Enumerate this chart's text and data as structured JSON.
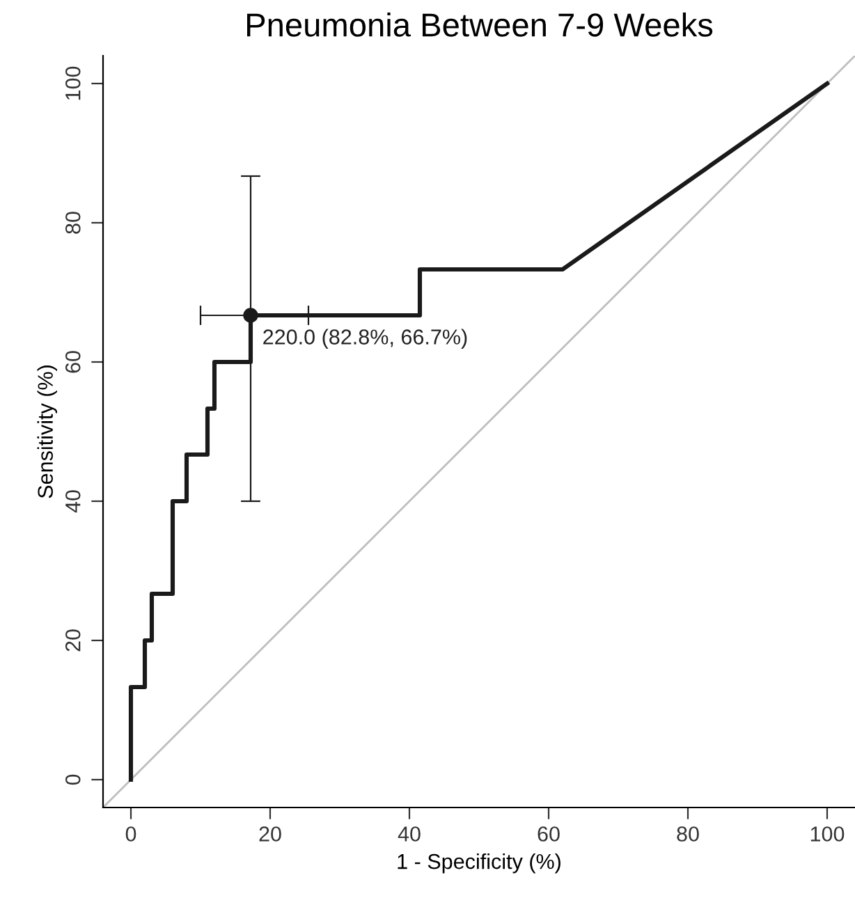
{
  "chart_data": {
    "type": "line",
    "title": "Pneumonia Between 7-9 Weeks",
    "xlabel": "1 - Specificity (%)",
    "ylabel": "Sensitivity (%)",
    "xlim": [
      -4,
      104
    ],
    "ylim": [
      -4,
      104
    ],
    "xticks": [
      0,
      20,
      40,
      60,
      80,
      100
    ],
    "yticks": [
      0,
      20,
      40,
      60,
      80,
      100
    ],
    "grid": false,
    "legend": false,
    "series": [
      {
        "type": "line",
        "color": "#bebebe",
        "x": [
          -4,
          104
        ],
        "values": [
          -4,
          104
        ]
      },
      {
        "color": "#1a1a1a",
        "x": [
          0,
          0,
          2,
          2,
          3,
          3,
          6,
          6,
          8,
          8,
          11,
          11,
          12,
          12,
          17.2,
          17.2,
          41.5,
          41.5,
          62,
          100
        ],
        "values": [
          0,
          13.3,
          13.3,
          20,
          20,
          26.7,
          26.7,
          40,
          40,
          46.7,
          46.7,
          53.3,
          53.3,
          60,
          60,
          66.7,
          66.7,
          73.3,
          73.3,
          100
        ]
      },
      {
        "type": "scatter",
        "color": "#1a1a1a",
        "marker": "circle",
        "x": [
          17.2
        ],
        "values": [
          66.7
        ],
        "errors": [
          [
            40,
            86.7
          ]
        ],
        "xerrors": [
          [
            10,
            25.5
          ]
        ]
      }
    ],
    "annotations": [
      {
        "text": "220.0 (82.8%, 66.7%)",
        "x": 17.2,
        "y": 66.7
      }
    ]
  }
}
